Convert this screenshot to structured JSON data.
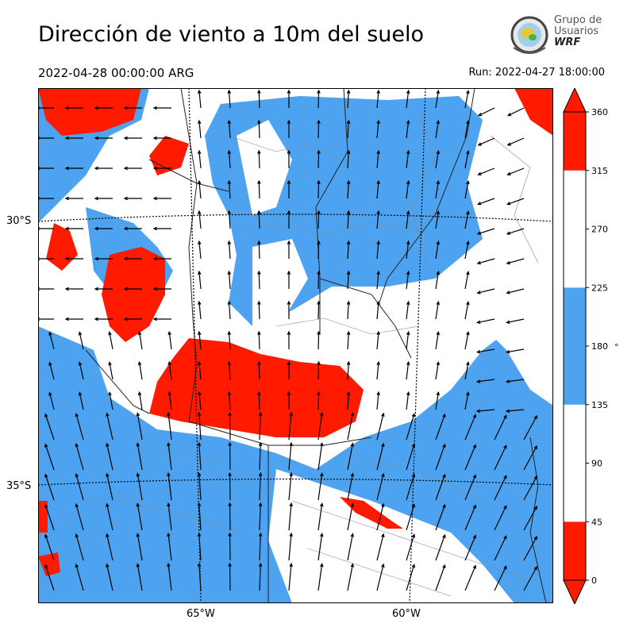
{
  "header": {
    "title": "Dirección de viento a 10m del suelo",
    "valid_time": "2022-04-28 00:00:00 ARG",
    "run": "Run: 2022-04-27 18:00:00"
  },
  "logo": {
    "line1": "Grupo de",
    "line2": "Usuarios",
    "line3": "WRF"
  },
  "map": {
    "lat_labels": [
      "30°S",
      "35°S"
    ],
    "lon_labels": [
      "65°W",
      "60°W"
    ]
  },
  "colorbar": {
    "ticks": [
      "360",
      "315",
      "270",
      "225",
      "180",
      "135",
      "90",
      "45",
      "0"
    ],
    "unit": "°",
    "bands": [
      {
        "from": 0,
        "to": 45,
        "color": "#ff1a00"
      },
      {
        "from": 45,
        "to": 135,
        "color": "#ffffff"
      },
      {
        "from": 135,
        "to": 225,
        "color": "#4da3f0"
      },
      {
        "from": 225,
        "to": 315,
        "color": "#ffffff"
      },
      {
        "from": 315,
        "to": 360,
        "color": "#ff1a00"
      }
    ]
  },
  "colors": {
    "red": "#ff1a00",
    "blue": "#4da3f0",
    "white": "#ffffff"
  }
}
